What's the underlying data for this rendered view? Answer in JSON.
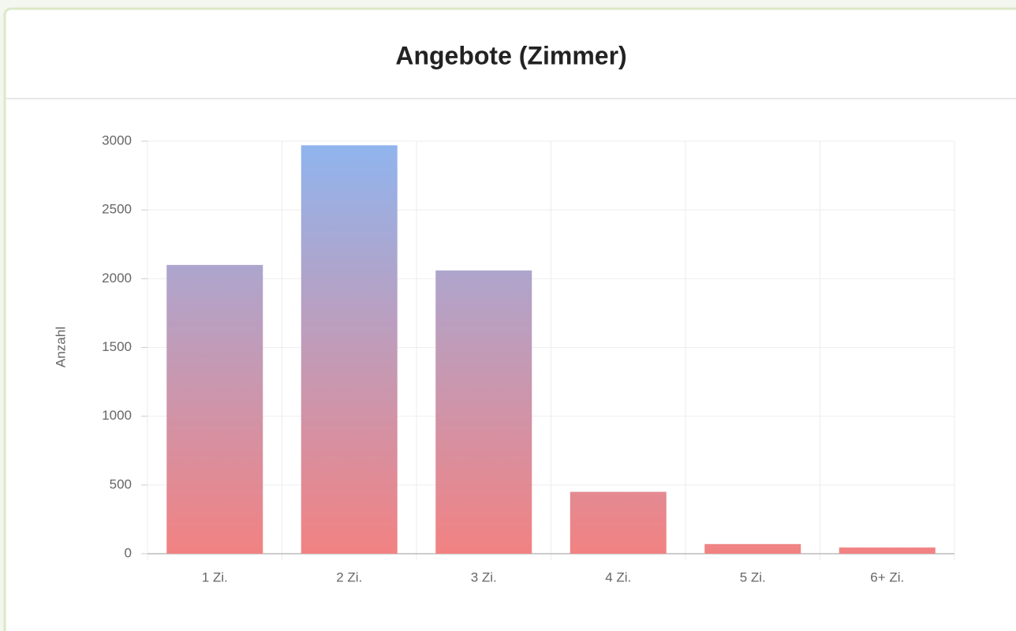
{
  "chart_data": {
    "type": "bar",
    "title": "Angebote (Zimmer)",
    "y_label": "Anzahl",
    "categories": [
      "1 Zi.",
      "2 Zi.",
      "3 Zi.",
      "4 Zi.",
      "5 Zi.",
      "6+ Zi."
    ],
    "values": [
      2100,
      2970,
      2060,
      450,
      70,
      45
    ],
    "gradient": [
      "#8fb5ef",
      "#f28282"
    ],
    "ylim": [
      0,
      3000
    ],
    "yticks": [
      0,
      500,
      1000,
      1500,
      2000,
      2500,
      3000
    ],
    "grid": true
  }
}
